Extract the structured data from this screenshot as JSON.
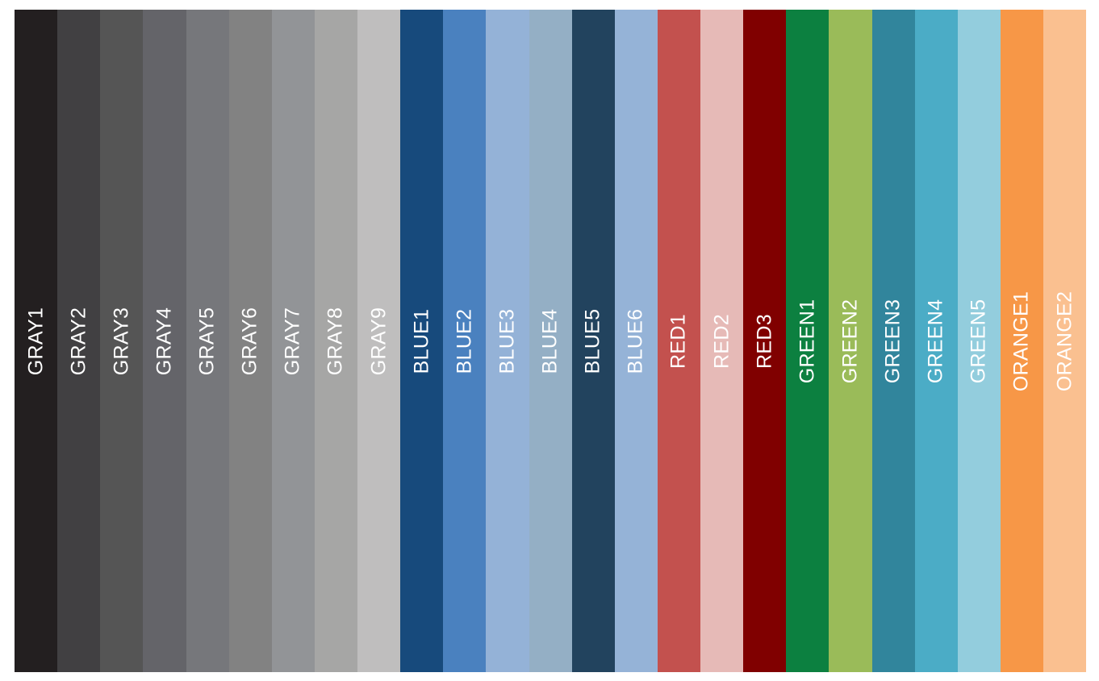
{
  "swatches": [
    {
      "label": "GRAY1",
      "color": "#231f20"
    },
    {
      "label": "GRAY2",
      "color": "#414042"
    },
    {
      "label": "GRAY3",
      "color": "#555555"
    },
    {
      "label": "GRAY4",
      "color": "#646469"
    },
    {
      "label": "GRAY5",
      "color": "#76777b"
    },
    {
      "label": "GRAY6",
      "color": "#828282"
    },
    {
      "label": "GRAY7",
      "color": "#929497"
    },
    {
      "label": "GRAY8",
      "color": "#a6a6a5"
    },
    {
      "label": "GRAY9",
      "color": "#bfbebe"
    },
    {
      "label": "BLUE1",
      "color": "#174a7c"
    },
    {
      "label": "BLUE2",
      "color": "#4a81bf"
    },
    {
      "label": "BLUE3",
      "color": "#94b2d7"
    },
    {
      "label": "BLUE4",
      "color": "#94afc5"
    },
    {
      "label": "BLUE5",
      "color": "#22435e"
    },
    {
      "label": "BLUE6",
      "color": "#95b3d7"
    },
    {
      "label": "RED1",
      "color": "#c3514e"
    },
    {
      "label": "RED2",
      "color": "#e6bab7"
    },
    {
      "label": "RED3",
      "color": "#800000"
    },
    {
      "label": "GREEN1",
      "color": "#0c8040"
    },
    {
      "label": "GREEN2",
      "color": "#9abb59"
    },
    {
      "label": "GREEN3",
      "color": "#31859c"
    },
    {
      "label": "GREEN4",
      "color": "#4bacc6"
    },
    {
      "label": "GREEN5",
      "color": "#93cddd"
    },
    {
      "label": "ORANGE1",
      "color": "#f79747"
    },
    {
      "label": "ORANGE2",
      "color": "#fac090"
    }
  ]
}
